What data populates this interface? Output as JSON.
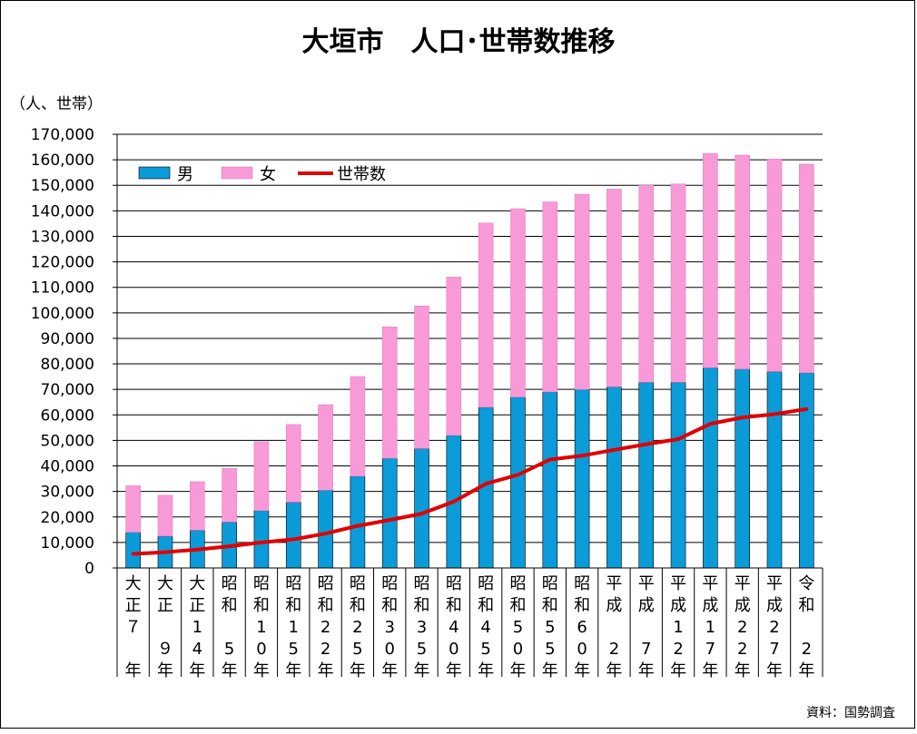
{
  "chart_data": {
    "type": "bar",
    "stacked": true,
    "title": "大垣市　人口･世帯数推移",
    "ylabel": "（人、世帯）",
    "ylim": [
      0,
      170000
    ],
    "ytick_step": 10000,
    "ytick_labels": [
      "0",
      "10,000",
      "20,000",
      "30,000",
      "40,000",
      "50,000",
      "60,000",
      "70,000",
      "80,000",
      "90,000",
      "100,000",
      "110,000",
      "120,000",
      "130,000",
      "140,000",
      "150,000",
      "160,000",
      "170,000"
    ],
    "grid": true,
    "legend_position": "top-left",
    "categories": [
      "大正７年",
      "大正９年",
      "大正14年",
      "昭和５年",
      "昭和10年",
      "昭和15年",
      "昭和22年",
      "昭和25年",
      "昭和30年",
      "昭和35年",
      "昭和40年",
      "昭和45年",
      "昭和50年",
      "昭和55年",
      "昭和60年",
      "平成２年",
      "平成７年",
      "平成12年",
      "平成17年",
      "平成22年",
      "平成27年",
      "令和２年"
    ],
    "category_lines": [
      [
        "大",
        "正",
        "７",
        "",
        "年"
      ],
      [
        "大",
        "正",
        "",
        "９",
        "年"
      ],
      [
        "大",
        "正",
        "1",
        "4",
        "年"
      ],
      [
        "昭",
        "和",
        "",
        "5",
        "年"
      ],
      [
        "昭",
        "和",
        "1",
        "0",
        "年"
      ],
      [
        "昭",
        "和",
        "1",
        "5",
        "年"
      ],
      [
        "昭",
        "和",
        "2",
        "2",
        "年"
      ],
      [
        "昭",
        "和",
        "2",
        "5",
        "年"
      ],
      [
        "昭",
        "和",
        "3",
        "0",
        "年"
      ],
      [
        "昭",
        "和",
        "3",
        "5",
        "年"
      ],
      [
        "昭",
        "和",
        "4",
        "0",
        "年"
      ],
      [
        "昭",
        "和",
        "4",
        "5",
        "年"
      ],
      [
        "昭",
        "和",
        "5",
        "0",
        "年"
      ],
      [
        "昭",
        "和",
        "5",
        "5",
        "年"
      ],
      [
        "昭",
        "和",
        "6",
        "0",
        "年"
      ],
      [
        "平",
        "成",
        "",
        "2",
        "年"
      ],
      [
        "平",
        "成",
        "",
        "7",
        "年"
      ],
      [
        "平",
        "成",
        "1",
        "2",
        "年"
      ],
      [
        "平",
        "成",
        "1",
        "7",
        "年"
      ],
      [
        "平",
        "成",
        "2",
        "2",
        "年"
      ],
      [
        "平",
        "成",
        "2",
        "7",
        "年"
      ],
      [
        "令",
        "和",
        "",
        "2",
        "年"
      ]
    ],
    "series": [
      {
        "name": "男",
        "kind": "bar",
        "color": "#0b9bd8",
        "values": [
          14000,
          12500,
          14800,
          18000,
          22500,
          25800,
          30500,
          36000,
          43000,
          46800,
          52000,
          63000,
          67000,
          69000,
          70000,
          71000,
          72800,
          72800,
          78500,
          78000,
          77000,
          76500
        ]
      },
      {
        "name": "女",
        "kind": "bar",
        "color": "#f99ad8",
        "values": [
          18200,
          16000,
          19000,
          21000,
          27000,
          30400,
          33500,
          39000,
          51500,
          55900,
          62000,
          72200,
          73800,
          74500,
          76500,
          77500,
          77200,
          77700,
          84000,
          83800,
          83300,
          81800
        ]
      },
      {
        "name": "世帯数",
        "kind": "line",
        "color": "#e00000",
        "values": [
          5500,
          6200,
          7200,
          8500,
          10000,
          11200,
          13500,
          16500,
          18800,
          21300,
          26000,
          33000,
          36500,
          42500,
          44000,
          46300,
          48500,
          50500,
          56500,
          59000,
          60300,
          62300
        ]
      }
    ],
    "source": "資料：国勢調査"
  }
}
